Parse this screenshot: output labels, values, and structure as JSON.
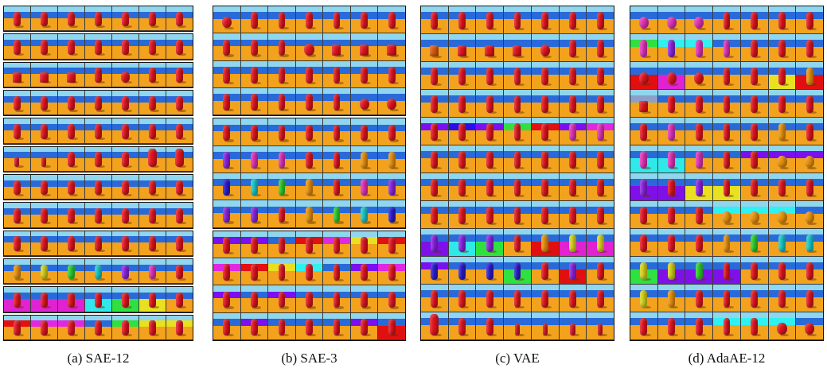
{
  "captions": [
    {
      "label": "(a) SAE-12"
    },
    {
      "label": "(b) SAE-3"
    },
    {
      "label": "(c) VAE"
    },
    {
      "label": "(d) AdaAE-12"
    }
  ],
  "palette": {
    "sky": "#8fd6ee",
    "wall": "#2a6ad8",
    "floor": "#f2a21c",
    "object_default": "#e0141e"
  },
  "panels": [
    {
      "name": "sae-12",
      "group_rows": [
        1,
        1,
        1,
        1,
        1,
        1,
        1,
        1,
        1,
        1,
        1,
        1
      ],
      "rows": [
        [
          "r",
          "r",
          "r",
          "r",
          "r",
          "r",
          "r"
        ],
        [
          "r",
          "r",
          "r",
          "r",
          "r",
          "r",
          "r"
        ],
        [
          "rcube",
          "rcube",
          "rcube",
          "r",
          "rsphere",
          "r",
          "r"
        ],
        [
          "r",
          "r",
          "r",
          "r",
          "r",
          "r",
          "r"
        ],
        [
          "r",
          "r",
          "r",
          "r",
          "r",
          "r",
          "r"
        ],
        [
          "rsmall",
          "rsmall",
          "r",
          "r",
          "r",
          "rbig",
          "rbig"
        ],
        [
          "r",
          "r",
          "r",
          "r",
          "r",
          "r",
          "r"
        ],
        [
          "r",
          "r",
          "r",
          "r",
          "r",
          "r",
          "r"
        ],
        [
          "r",
          "r",
          "r",
          "r",
          "r",
          "r",
          "r"
        ],
        [
          "orange",
          "yellow",
          "green",
          "cyan",
          "purple",
          "pink",
          "r"
        ],
        [
          "r:floorpink",
          "r:floorpink",
          "r:floorpink",
          "r:floorcyan",
          "r:floorgreen",
          "r:flooryellow",
          "r"
        ],
        [
          "r:wallred",
          "r:wallpink",
          "r:wallpink",
          "r",
          "r:wallgreen",
          "r:wallyellow",
          "r:wallyellow"
        ]
      ]
    },
    {
      "name": "sae-3",
      "group_rows": [
        4,
        4,
        4
      ],
      "rows": [
        [
          "rsphere",
          "r",
          "r",
          "r",
          "r",
          "r",
          "r"
        ],
        [
          "r",
          "r",
          "r",
          "rsphere",
          "rcube",
          "rcube",
          "rcube"
        ],
        [
          "r",
          "r",
          "r",
          "r",
          "r",
          "r",
          "r"
        ],
        [
          "r",
          "r",
          "r",
          "r",
          "r",
          "rsphere",
          "rsphere"
        ],
        [
          "r",
          "r",
          "r",
          "r",
          "r",
          "r",
          "r"
        ],
        [
          "purple",
          "pink",
          "pink",
          "r",
          "r",
          "orange",
          "orange"
        ],
        [
          "blue",
          "cyan",
          "green",
          "orange",
          "r",
          "pink",
          "purple"
        ],
        [
          "purple",
          "purple",
          "r",
          "orange",
          "green",
          "cyan",
          "blue"
        ],
        [
          "r:wallpurple",
          "r:wallpurple",
          "r",
          "r:wallred",
          "r:wallpink",
          "r:wallyellow",
          "r:wallred"
        ],
        [
          "r:wallpink",
          "r:wallred",
          "r:wallyellow",
          "r:wallcyan",
          "r",
          "r:wallpurple",
          "r:wallpink"
        ],
        [
          "r:wallpurple",
          "r",
          "r:wallpurple",
          "r",
          "r",
          "r",
          "r"
        ],
        [
          "r",
          "r:wallpurple",
          "r",
          "r",
          "r",
          "r:wallpurple",
          "r:floorred"
        ]
      ]
    },
    {
      "name": "vae",
      "group_rows": [
        12
      ],
      "rows": [
        [
          "r",
          "r",
          "r",
          "r",
          "r",
          "r",
          "r"
        ],
        [
          "ocube",
          "rcube",
          "rcube",
          "rcube",
          "rsphere",
          "r",
          "r"
        ],
        [
          "r",
          "r",
          "r",
          "r",
          "r",
          "r",
          "r"
        ],
        [
          "r",
          "r",
          "r",
          "r",
          "r",
          "r",
          "r"
        ],
        [
          "r:wallpurple",
          "r:wallblue",
          "r:wallpurple",
          "r:wallgreen",
          "r:wallred",
          "pink:wallpurple",
          "pink:wallpink"
        ],
        [
          "r",
          "r",
          "r",
          "r",
          "r",
          "r",
          "r"
        ],
        [
          "r",
          "r",
          "r",
          "r",
          "r",
          "r",
          "r"
        ],
        [
          "r",
          "r",
          "r",
          "r",
          "r",
          "r",
          "r"
        ],
        [
          "purple:floorpurple",
          "purple:floorcyan",
          "purple:floorgreen",
          "r",
          "orange:floorred",
          "yellow:floorpink",
          "yellow:floorpink"
        ],
        [
          "blue:wallpurple",
          "blue",
          "blue",
          "blue:floorgreen",
          "r",
          "purple:floorred",
          "r"
        ],
        [
          "r",
          "r",
          "r",
          "r",
          "r",
          "r",
          "r"
        ],
        [
          "rbig",
          "r",
          "r",
          "rsmall",
          "rsmall",
          "rsmall",
          "rsmall"
        ]
      ]
    },
    {
      "name": "adaae-12",
      "group_rows": [
        12
      ],
      "rows": [
        [
          "pinksphere",
          "pinksphere",
          "pinksphere",
          "r",
          "r",
          "r",
          "r"
        ],
        [
          "pink:wallgreen",
          "purple:wallcyan",
          "pink:wallcyan",
          "pink",
          "r",
          "r",
          "r"
        ],
        [
          "rsphere:floorred",
          "rsphere:floorpink",
          "rsphere",
          "r",
          "r",
          "r:flooryellow",
          "orange:floorred"
        ],
        [
          "rcube:wallgray",
          "r",
          "r",
          "r",
          "r",
          "r",
          "r"
        ],
        [
          "r",
          "pink",
          "r",
          "r",
          "r",
          "orange",
          "r"
        ],
        [
          "pink:floorcyan",
          "pink:floorcyan",
          "pink",
          "r",
          "r:wallpurple",
          "orangesphere:wallpurple",
          "orangesphere:wallpurple"
        ],
        [
          "purple:floorpurple",
          "r:floorpurple",
          "purple:flooryellow",
          "r:flooryellow",
          "r",
          "r",
          "r"
        ],
        [
          "r",
          "r",
          "r",
          "orangesphere:wallcyan",
          "orangesphere:wallcyan",
          "orangesphere:wallcyan",
          "orangesphere"
        ],
        [
          "r",
          "r",
          "r",
          "orange",
          "green",
          "cyan",
          "cyan"
        ],
        [
          "yellow:floorgreen",
          "yellow:floorpurple",
          "green:floorpurple",
          "r:floorpurple",
          "r",
          "r",
          "r"
        ],
        [
          "yellow",
          "orange",
          "r",
          "r",
          "r",
          "r",
          "r"
        ],
        [
          "r",
          "r",
          "r",
          "r:wallcyan",
          "r:wallcyan",
          "rsphere:wallcyan",
          "rsphere"
        ]
      ]
    }
  ]
}
